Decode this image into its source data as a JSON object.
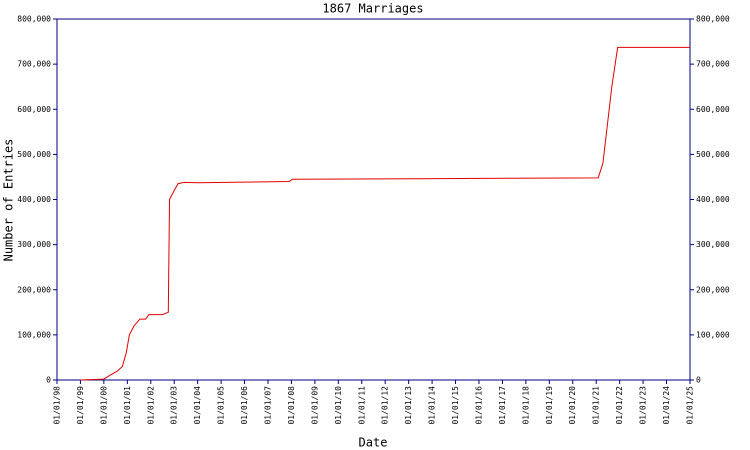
{
  "chart_data": {
    "type": "line",
    "title": "1867 Marriages",
    "x_label": "Date",
    "y_label": "Number of Entries",
    "x": [
      "1999-01-01",
      "2000-01-01",
      "2000-04-01",
      "2000-08-01",
      "2000-10-15",
      "2000-12-15",
      "2001-02-01",
      "2001-04-15",
      "2001-07-15",
      "2001-10-15",
      "2001-12-01",
      "2002-07-01",
      "2002-10-01",
      "2002-10-20",
      "2003-01-01",
      "2003-03-01",
      "2003-06-01",
      "2004-01-01",
      "2007-12-01",
      "2008-01-15",
      "2013-06-01",
      "2021-02-01",
      "2021-04-15",
      "2021-09-01",
      "2021-12-01",
      "2025-01-01"
    ],
    "series": [
      {
        "name": "Entries",
        "color": "#e00000",
        "values": [
          0,
          2000,
          10000,
          20000,
          30000,
          60000,
          100000,
          120000,
          135000,
          135000,
          145000,
          145000,
          150000,
          400000,
          420000,
          435000,
          438000,
          437000,
          440000,
          445000,
          446000,
          448000,
          480000,
          650000,
          737000,
          737000
        ]
      }
    ],
    "xlim": [
      "1998-01-01",
      "2025-01-01"
    ],
    "xticks": [
      {
        "value": "1998-01-01",
        "label": "01/01/98"
      },
      {
        "value": "1999-01-01",
        "label": "01/01/99"
      },
      {
        "value": "2000-01-01",
        "label": "01/01/00"
      },
      {
        "value": "2001-01-01",
        "label": "01/01/01"
      },
      {
        "value": "2002-01-01",
        "label": "01/01/02"
      },
      {
        "value": "2003-01-01",
        "label": "01/01/03"
      },
      {
        "value": "2004-01-01",
        "label": "01/01/04"
      },
      {
        "value": "2005-01-01",
        "label": "01/01/05"
      },
      {
        "value": "2006-01-01",
        "label": "01/01/06"
      },
      {
        "value": "2007-01-01",
        "label": "01/01/07"
      },
      {
        "value": "2008-01-01",
        "label": "01/01/08"
      },
      {
        "value": "2009-01-01",
        "label": "01/01/09"
      },
      {
        "value": "2010-01-01",
        "label": "01/01/10"
      },
      {
        "value": "2011-01-01",
        "label": "01/01/11"
      },
      {
        "value": "2012-01-01",
        "label": "01/01/12"
      },
      {
        "value": "2013-01-01",
        "label": "01/01/13"
      },
      {
        "value": "2014-01-01",
        "label": "01/01/14"
      },
      {
        "value": "2015-01-01",
        "label": "01/01/15"
      },
      {
        "value": "2016-01-01",
        "label": "01/01/16"
      },
      {
        "value": "2017-01-01",
        "label": "01/01/17"
      },
      {
        "value": "2018-01-01",
        "label": "01/01/18"
      },
      {
        "value": "2019-01-01",
        "label": "01/01/19"
      },
      {
        "value": "2020-01-01",
        "label": "01/01/20"
      },
      {
        "value": "2021-01-01",
        "label": "01/01/21"
      },
      {
        "value": "2022-01-01",
        "label": "01/01/22"
      },
      {
        "value": "2023-01-01",
        "label": "01/01/23"
      },
      {
        "value": "2024-01-01",
        "label": "01/01/24"
      },
      {
        "value": "2025-01-01",
        "label": "01/01/25"
      }
    ],
    "ylim": [
      0,
      800000
    ],
    "yticks": [
      0,
      {
        "value": 100000,
        "label": "100,000"
      },
      {
        "value": 200000,
        "label": "200,000"
      },
      {
        "value": 300000,
        "label": "300,000"
      },
      {
        "value": 400000,
        "label": "400,000"
      },
      {
        "value": 500000,
        "label": "500,000"
      },
      {
        "value": 600000,
        "label": "600,000"
      },
      {
        "value": 700000,
        "label": "700,000"
      },
      {
        "value": 800000,
        "label": "800,000"
      }
    ],
    "axis_color": "#000080"
  }
}
